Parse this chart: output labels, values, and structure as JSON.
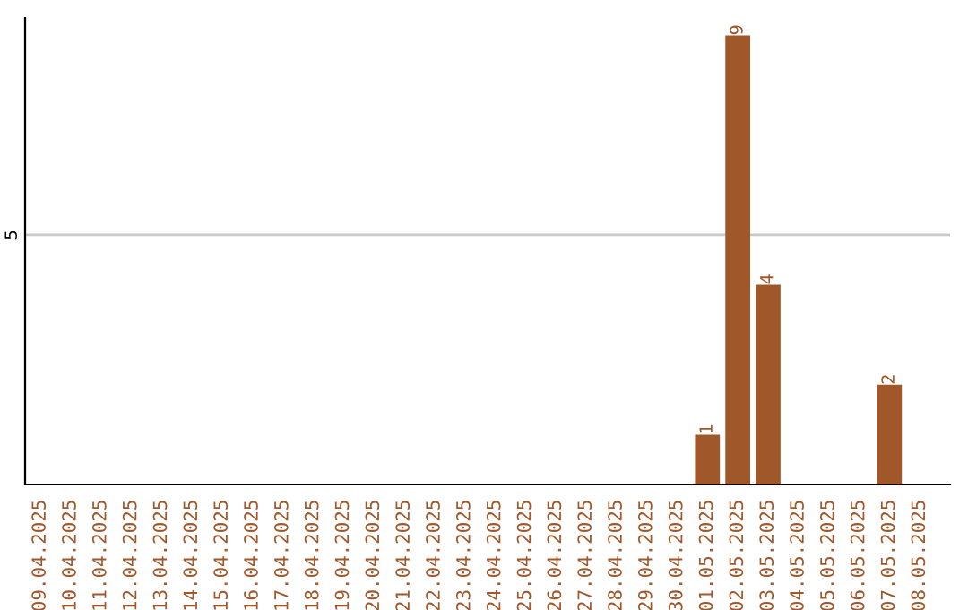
{
  "chart_data": {
    "type": "bar",
    "categories": [
      "09.04.2025",
      "10.04.2025",
      "11.04.2025",
      "12.04.2025",
      "13.04.2025",
      "14.04.2025",
      "15.04.2025",
      "16.04.2025",
      "17.04.2025",
      "18.04.2025",
      "19.04.2025",
      "20.04.2025",
      "21.04.2025",
      "22.04.2025",
      "23.04.2025",
      "24.04.2025",
      "25.04.2025",
      "26.04.2025",
      "27.04.2025",
      "28.04.2025",
      "29.04.2025",
      "30.04.2025",
      "01.05.2025",
      "02.05.2025",
      "03.05.2025",
      "04.05.2025",
      "05.05.2025",
      "06.05.2025",
      "07.05.2025",
      "08.05.2025"
    ],
    "values": [
      null,
      null,
      null,
      null,
      null,
      null,
      null,
      null,
      null,
      null,
      null,
      null,
      null,
      null,
      null,
      null,
      null,
      null,
      null,
      null,
      null,
      null,
      1,
      9,
      4,
      null,
      null,
      null,
      2,
      null
    ],
    "data_labels": true,
    "color": "#a0572a",
    "ylim": [
      0,
      9.35
    ],
    "yticks": [
      5
    ],
    "grid": "y",
    "legend": false
  }
}
